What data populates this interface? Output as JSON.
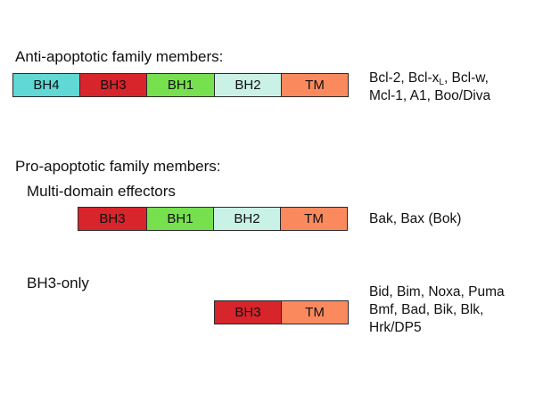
{
  "colors": {
    "BH4": "#5fd8d6",
    "BH3": "#d8242b",
    "BH1": "#76e04f",
    "BH2": "#c9f1e6",
    "TM": "#fa8a5e"
  },
  "anti": {
    "heading": "Anti-apoptotic family members:",
    "domains": [
      "BH4",
      "BH3",
      "BH1",
      "BH2",
      "TM"
    ],
    "members": {
      "line1_pre": "Bcl-2, Bcl-x",
      "line1_sub": "L",
      "line1_post": ", Bcl-w,",
      "line2": "Mcl-1, A1, Boo/Diva"
    }
  },
  "pro": {
    "heading": "Pro-apoptotic family members:"
  },
  "multi": {
    "heading": "Multi-domain effectors",
    "domains": [
      "BH3",
      "BH1",
      "BH2",
      "TM"
    ],
    "members": "Bak, Bax (Bok)"
  },
  "bh3only": {
    "heading": "BH3-only",
    "domains": [
      "BH3",
      "TM"
    ],
    "members": [
      "Bid, Bim, Noxa, Puma",
      "Bmf, Bad, Bik, Blk,",
      "Hrk/DP5"
    ]
  }
}
